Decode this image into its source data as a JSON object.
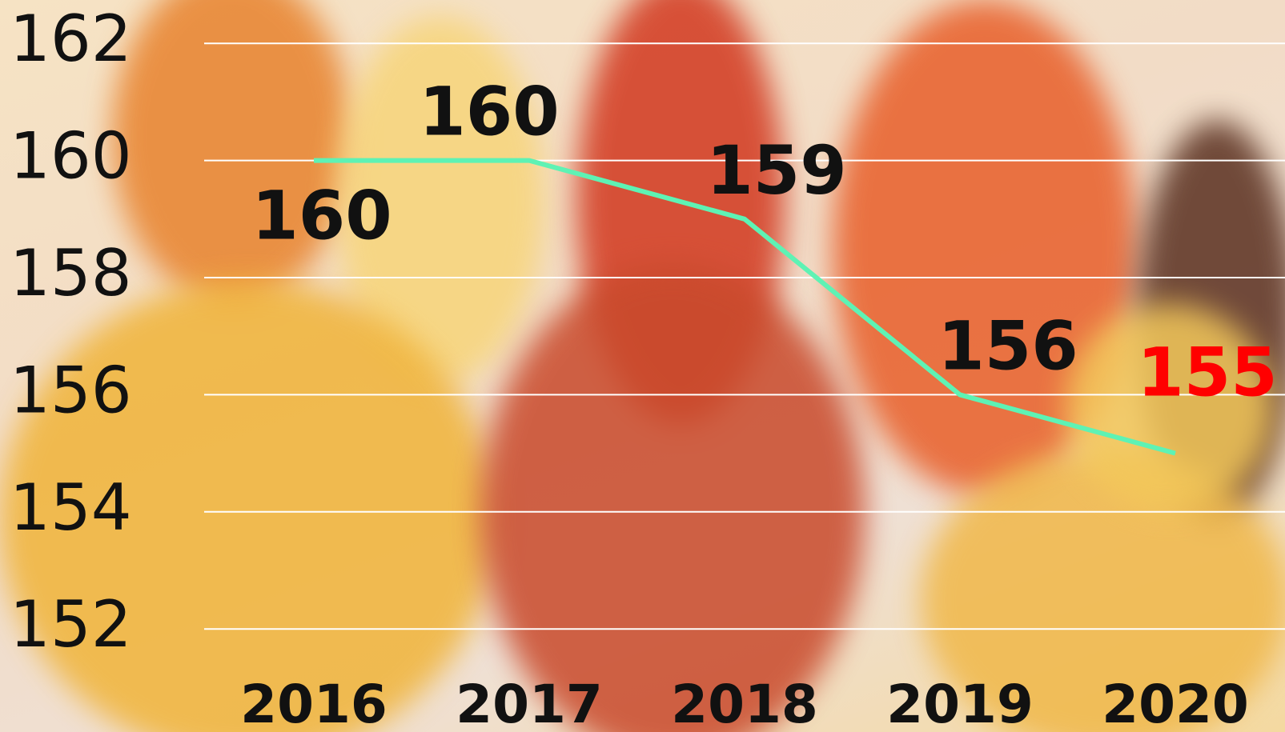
{
  "chart_data": {
    "type": "line",
    "categories": [
      "2016",
      "2017",
      "2018",
      "2019",
      "2020"
    ],
    "series": [
      {
        "color": "#5ef2b4",
        "values": [
          160,
          160,
          159,
          156,
          155
        ]
      }
    ],
    "ylim": [
      150.5,
      162.7
    ],
    "yticks": [
      152,
      154,
      156,
      158,
      160,
      162
    ],
    "grid": true
  }
}
